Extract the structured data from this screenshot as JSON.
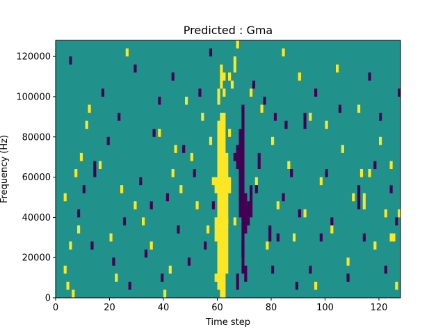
{
  "chart_data": {
    "type": "heatmap",
    "title": "Predicted : Gma",
    "xlabel": "Time step",
    "ylabel": "Frequency (Hz)",
    "xlim": [
      0,
      128
    ],
    "ylim": [
      0,
      128000
    ],
    "xticks": [
      "0",
      "20",
      "40",
      "60",
      "80",
      "100",
      "120"
    ],
    "yticks": [
      "0",
      "20000",
      "40000",
      "60000",
      "80000",
      "100000",
      "120000"
    ],
    "grid": false,
    "legend": "none",
    "colors": {
      "background": "#21918c",
      "high": "#fde725",
      "low": "#440154"
    },
    "value_levels": {
      "low": -1,
      "mid": 0,
      "high": 1
    },
    "cell_width_steps": 1,
    "cell_height_hz": 4000,
    "yellow_cells": [
      [
        60,
        4000,
        88000
      ],
      [
        61,
        0,
        92000
      ],
      [
        62,
        0,
        92000
      ],
      [
        63,
        12000,
        72000
      ],
      [
        59,
        8000,
        12000
      ],
      [
        59,
        28000,
        40000
      ],
      [
        59,
        52000,
        60000
      ],
      [
        58,
        56000,
        60000
      ],
      [
        57,
        76000,
        80000
      ],
      [
        60,
        96000,
        104000
      ],
      [
        61,
        104000,
        116000
      ],
      [
        62,
        100000,
        104000
      ],
      [
        62,
        108000,
        112000
      ],
      [
        64,
        80000,
        84000
      ],
      [
        64,
        108000,
        112000
      ],
      [
        65,
        104000,
        108000
      ],
      [
        66,
        112000,
        120000
      ],
      [
        67,
        124000,
        128000
      ],
      [
        64,
        52000,
        60000
      ],
      [
        63,
        36000,
        40000
      ],
      [
        114,
        44000,
        52000
      ],
      [
        116,
        60000,
        64000
      ],
      [
        124,
        28000,
        32000
      ],
      [
        125,
        28000,
        32000
      ],
      [
        8,
        32000,
        36000
      ],
      [
        5,
        24000,
        28000
      ],
      [
        4,
        4000,
        8000
      ],
      [
        6,
        0,
        4000
      ],
      [
        3,
        12000,
        16000
      ],
      [
        3,
        48000,
        52000
      ],
      [
        7,
        60000,
        64000
      ],
      [
        9,
        68000,
        72000
      ],
      [
        11,
        84000,
        88000
      ],
      [
        12,
        92000,
        96000
      ],
      [
        16,
        64000,
        68000
      ],
      [
        20,
        28000,
        32000
      ],
      [
        22,
        8000,
        12000
      ],
      [
        24,
        52000,
        56000
      ],
      [
        26,
        120000,
        124000
      ],
      [
        29,
        44000,
        48000
      ],
      [
        32,
        36000,
        40000
      ],
      [
        35,
        24000,
        28000
      ],
      [
        38,
        80000,
        84000
      ],
      [
        40,
        0,
        4000
      ],
      [
        42,
        12000,
        16000
      ],
      [
        43,
        60000,
        64000
      ],
      [
        44,
        72000,
        76000
      ],
      [
        46,
        52000,
        56000
      ],
      [
        48,
        96000,
        100000
      ],
      [
        50,
        68000,
        72000
      ],
      [
        52,
        44000,
        48000
      ],
      [
        54,
        88000,
        92000
      ],
      [
        56,
        32000,
        36000
      ],
      [
        66,
        36000,
        40000
      ],
      [
        69,
        16000,
        20000
      ],
      [
        72,
        100000,
        104000
      ],
      [
        74,
        56000,
        60000
      ],
      [
        76,
        92000,
        96000
      ],
      [
        78,
        24000,
        28000
      ],
      [
        80,
        76000,
        80000
      ],
      [
        82,
        44000,
        48000
      ],
      [
        84,
        120000,
        124000
      ],
      [
        86,
        64000,
        68000
      ],
      [
        88,
        28000,
        32000
      ],
      [
        90,
        108000,
        112000
      ],
      [
        92,
        40000,
        44000
      ],
      [
        94,
        88000,
        92000
      ],
      [
        96,
        4000,
        8000
      ],
      [
        98,
        56000,
        60000
      ],
      [
        100,
        84000,
        88000
      ],
      [
        102,
        32000,
        36000
      ],
      [
        104,
        112000,
        116000
      ],
      [
        106,
        72000,
        76000
      ],
      [
        108,
        16000,
        20000
      ],
      [
        110,
        48000,
        52000
      ],
      [
        112,
        92000,
        96000
      ],
      [
        113,
        60000,
        64000
      ],
      [
        118,
        24000,
        28000
      ],
      [
        120,
        76000,
        80000
      ],
      [
        122,
        40000,
        44000
      ],
      [
        124,
        64000,
        68000
      ],
      [
        126,
        4000,
        8000
      ],
      [
        127,
        40000,
        44000
      ]
    ],
    "purple_cells": [
      [
        66,
        68000,
        72000
      ],
      [
        67,
        64000,
        76000
      ],
      [
        68,
        40000,
        84000
      ],
      [
        69,
        12000,
        96000
      ],
      [
        70,
        32000,
        52000
      ],
      [
        71,
        36000,
        48000
      ],
      [
        72,
        40000,
        56000
      ],
      [
        67,
        4000,
        12000
      ],
      [
        69,
        20000,
        28000
      ],
      [
        70,
        8000,
        16000
      ],
      [
        73,
        104000,
        108000
      ],
      [
        74,
        52000,
        56000
      ],
      [
        75,
        64000,
        72000
      ],
      [
        77,
        96000,
        100000
      ],
      [
        79,
        28000,
        36000
      ],
      [
        82,
        28000,
        32000
      ],
      [
        84,
        48000,
        52000
      ],
      [
        85,
        84000,
        88000
      ],
      [
        87,
        60000,
        64000
      ],
      [
        89,
        4000,
        8000
      ],
      [
        90,
        40000,
        44000
      ],
      [
        92,
        84000,
        92000
      ],
      [
        94,
        12000,
        16000
      ],
      [
        96,
        100000,
        104000
      ],
      [
        98,
        28000,
        32000
      ],
      [
        100,
        60000,
        64000
      ],
      [
        102,
        36000,
        40000
      ],
      [
        105,
        92000,
        96000
      ],
      [
        108,
        8000,
        12000
      ],
      [
        112,
        44000,
        56000
      ],
      [
        114,
        28000,
        32000
      ],
      [
        116,
        108000,
        112000
      ],
      [
        118,
        64000,
        68000
      ],
      [
        120,
        88000,
        92000
      ],
      [
        122,
        12000,
        16000
      ],
      [
        124,
        52000,
        56000
      ],
      [
        126,
        36000,
        40000
      ],
      [
        127,
        100000,
        104000
      ],
      [
        5,
        116000,
        120000
      ],
      [
        8,
        40000,
        44000
      ],
      [
        10,
        52000,
        56000
      ],
      [
        13,
        24000,
        28000
      ],
      [
        14,
        60000,
        68000
      ],
      [
        17,
        100000,
        104000
      ],
      [
        19,
        76000,
        80000
      ],
      [
        21,
        16000,
        20000
      ],
      [
        23,
        88000,
        92000
      ],
      [
        25,
        36000,
        40000
      ],
      [
        27,
        4000,
        8000
      ],
      [
        29,
        112000,
        116000
      ],
      [
        31,
        56000,
        60000
      ],
      [
        33,
        20000,
        24000
      ],
      [
        35,
        44000,
        48000
      ],
      [
        36,
        80000,
        84000
      ],
      [
        38,
        96000,
        100000
      ],
      [
        39,
        8000,
        12000
      ],
      [
        41,
        48000,
        52000
      ],
      [
        43,
        108000,
        112000
      ],
      [
        45,
        32000,
        36000
      ],
      [
        47,
        72000,
        76000
      ],
      [
        49,
        16000,
        20000
      ],
      [
        51,
        60000,
        64000
      ],
      [
        53,
        100000,
        104000
      ],
      [
        55,
        24000,
        28000
      ],
      [
        57,
        120000,
        124000
      ],
      [
        58,
        44000,
        48000
      ],
      [
        80,
        12000,
        16000
      ],
      [
        81,
        88000,
        92000
      ]
    ]
  }
}
